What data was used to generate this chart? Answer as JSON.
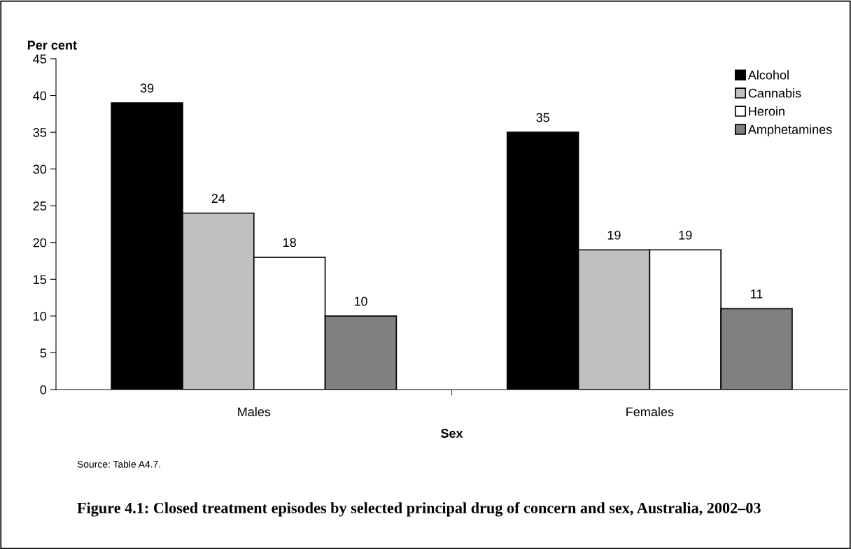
{
  "chart_data": {
    "type": "bar",
    "title": "Figure 4.1: Closed treatment episodes by selected principal drug of concern and sex, Australia, 2002–03",
    "xlabel": "Sex",
    "ylabel": "Per cent",
    "categories": [
      "Males",
      "Females"
    ],
    "series": [
      {
        "name": "Alcohol",
        "color": "#000000",
        "values": [
          39,
          35
        ]
      },
      {
        "name": "Cannabis",
        "color": "#c0c0c0",
        "values": [
          24,
          19
        ]
      },
      {
        "name": "Heroin",
        "color": "#ffffff",
        "values": [
          18,
          19
        ]
      },
      {
        "name": "Amphetamines",
        "color": "#808080",
        "values": [
          10,
          11
        ]
      }
    ],
    "ylim": [
      0,
      45
    ],
    "yticks": [
      0,
      5,
      10,
      15,
      20,
      25,
      30,
      35,
      40,
      45
    ],
    "grid": false,
    "legend": "top right",
    "data_labels": true,
    "annotations": [
      "Source: Table A4.7."
    ]
  }
}
